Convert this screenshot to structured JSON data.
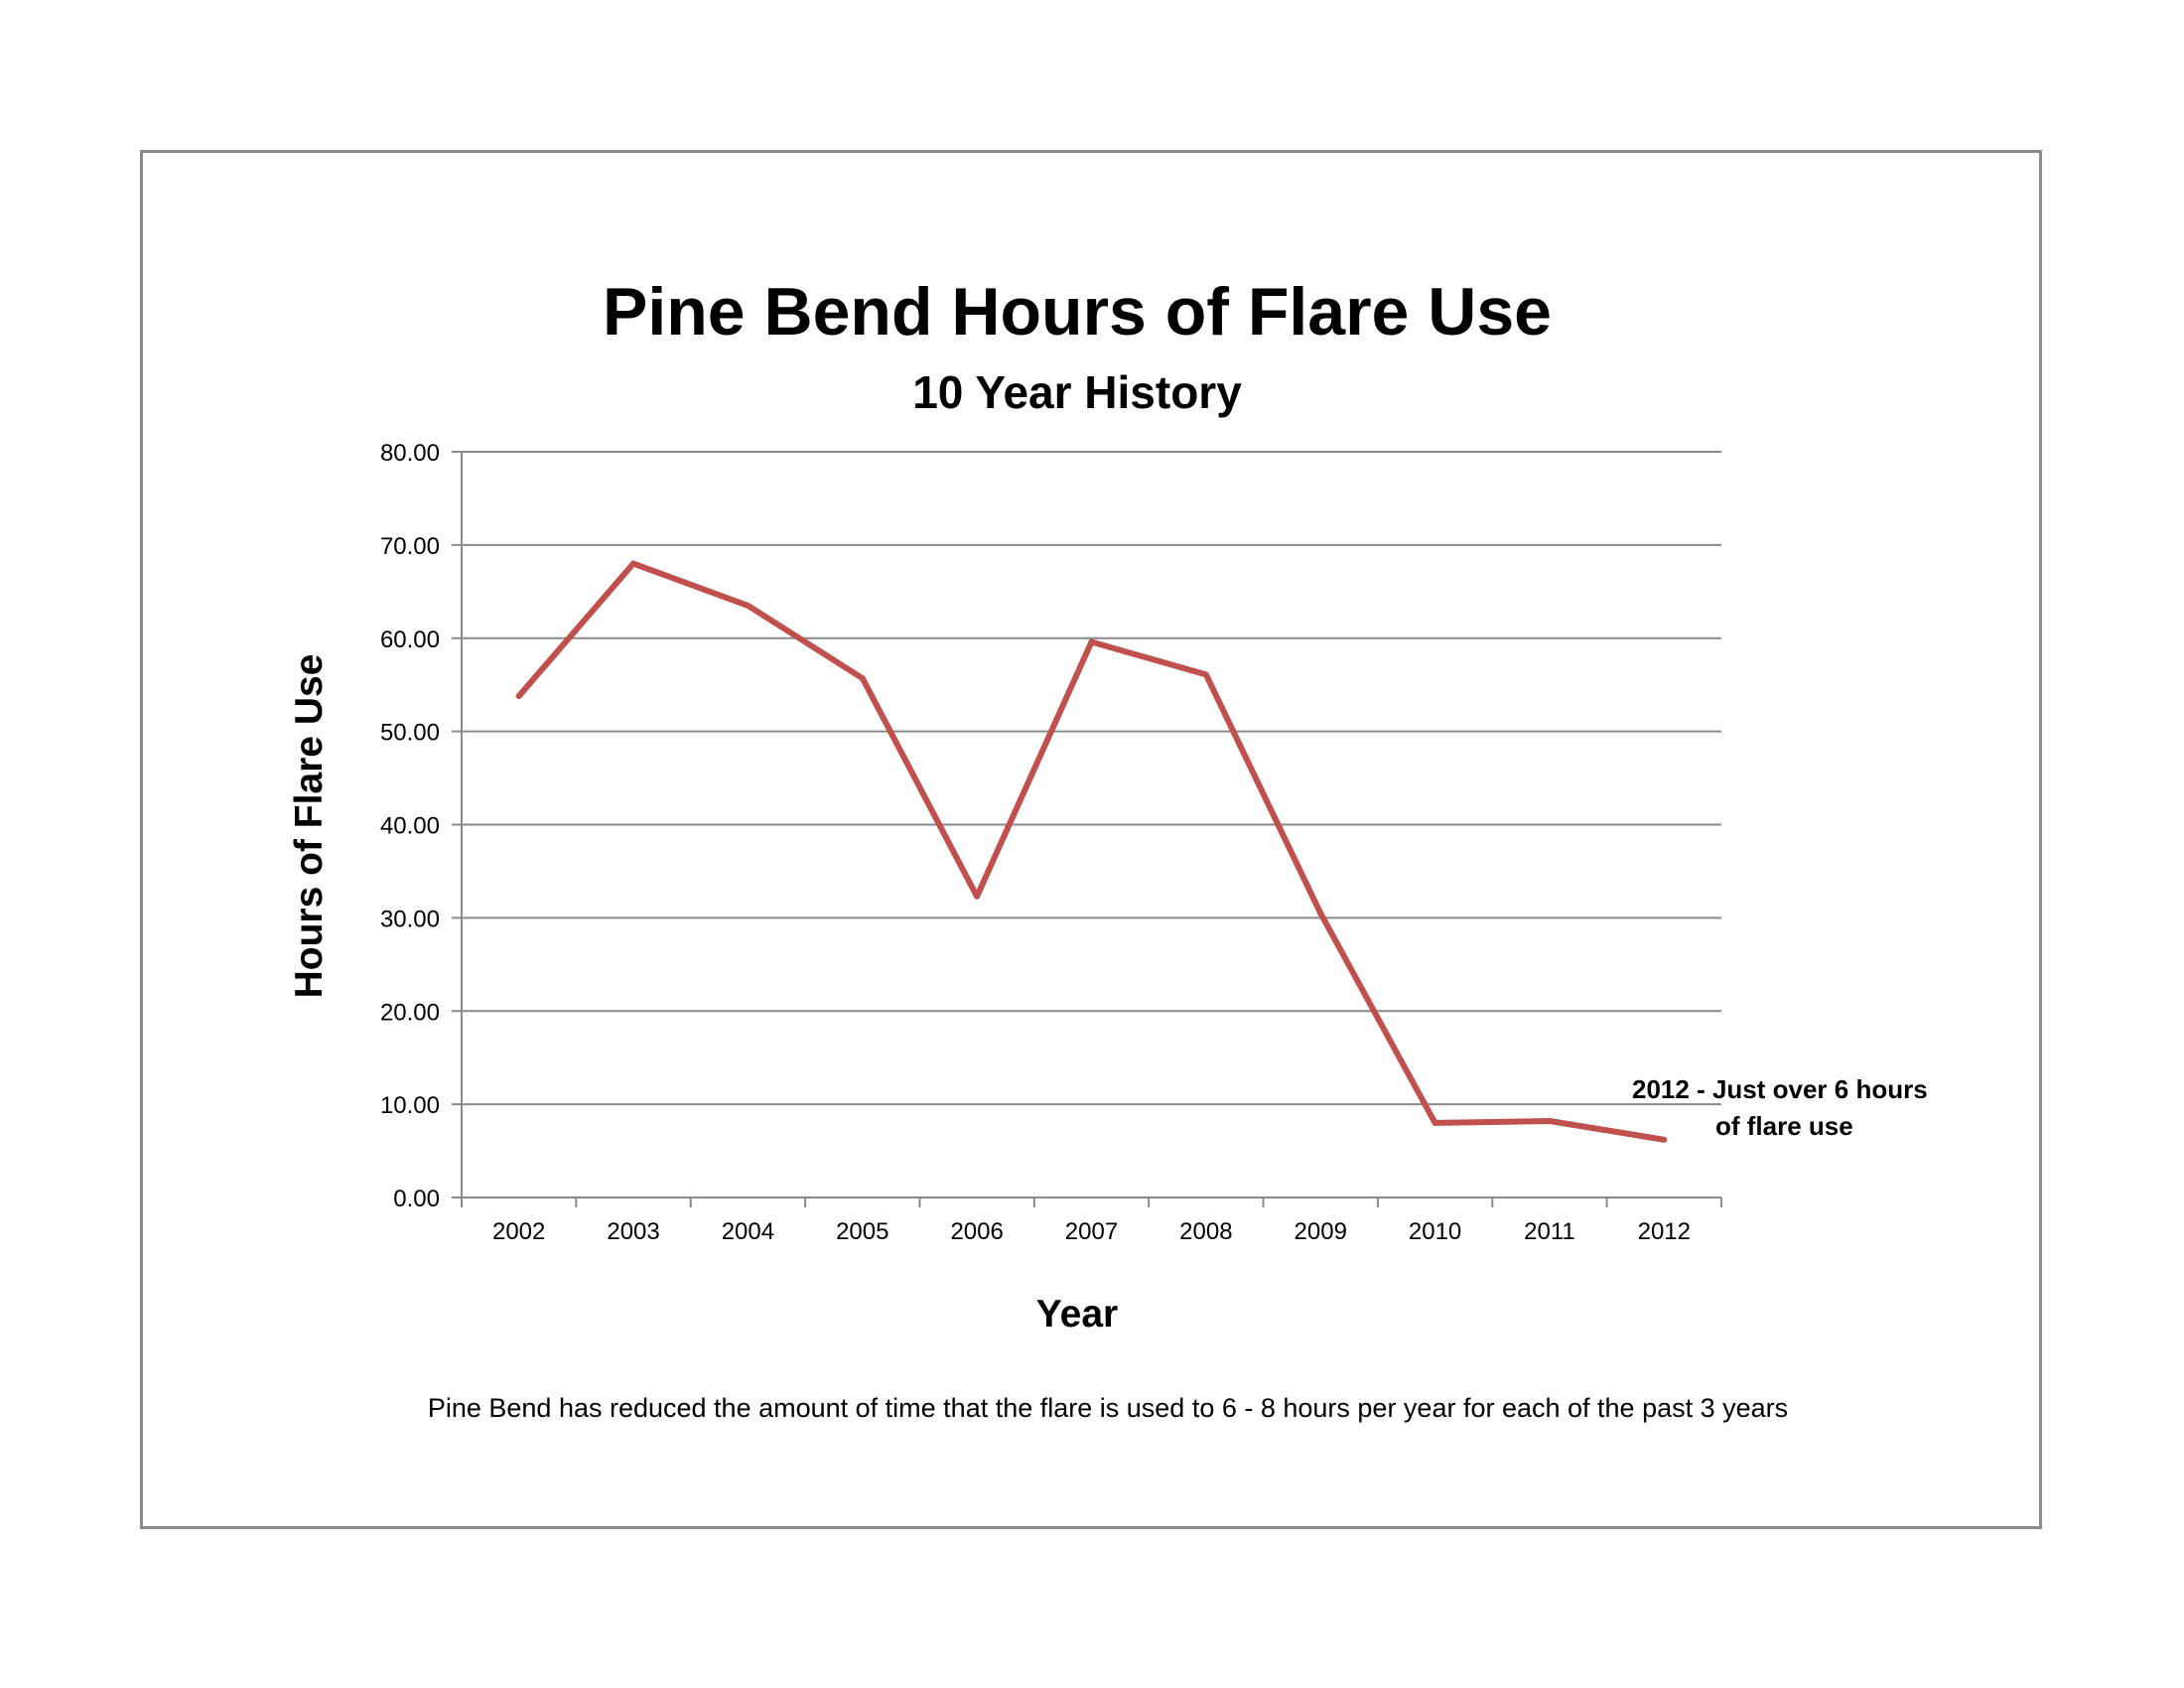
{
  "chart_data": {
    "type": "line",
    "title": "Pine Bend Hours of Flare Use",
    "subtitle": "10 Year History",
    "xlabel": "Year",
    "ylabel": "Hours of Flare Use",
    "categories": [
      "2002",
      "2003",
      "2004",
      "2005",
      "2006",
      "2007",
      "2008",
      "2009",
      "2010",
      "2011",
      "2012"
    ],
    "series": [
      {
        "values": [
          53.8,
          68.0,
          63.5,
          55.7,
          32.3,
          59.6,
          56.1,
          30.5,
          8.0,
          8.2,
          6.2
        ],
        "color": "#c0504d"
      }
    ],
    "ylim": [
      0,
      80
    ],
    "yticks": [
      "0.00",
      "10.00",
      "20.00",
      "30.00",
      "40.00",
      "50.00",
      "60.00",
      "70.00",
      "80.00"
    ],
    "grid": true,
    "legend": "none",
    "annotation": {
      "line1": "2012  - Just over 6 hours",
      "line2": "of flare use"
    },
    "footnote": "Pine Bend has reduced the amount of time that the flare is used to 6 - 8 hours per year for each of the past 3 years"
  }
}
